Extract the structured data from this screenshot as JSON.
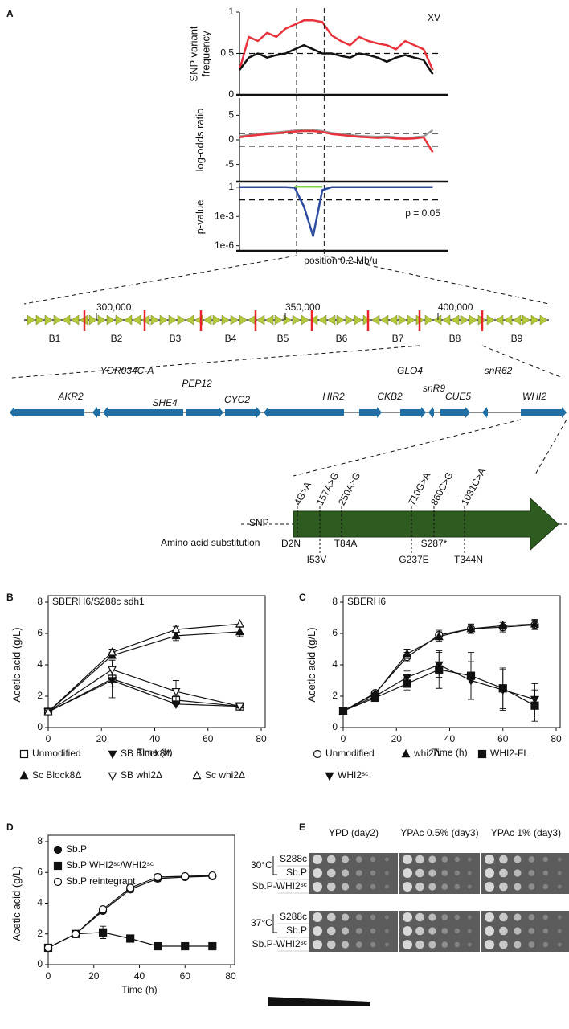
{
  "panel_labels": [
    "A",
    "B",
    "C",
    "D",
    "E"
  ],
  "chart_data": [
    {
      "type": "line",
      "annotation": "XV",
      "ylabel": "SNP variant frequency",
      "x": [
        0,
        0.05,
        0.1,
        0.15,
        0.2,
        0.25,
        0.3,
        0.35,
        0.4,
        0.45,
        0.5,
        0.55,
        0.6,
        0.65,
        0.7,
        0.75,
        0.8,
        0.85,
        0.9,
        0.95,
        1.0,
        1.05
      ],
      "series": [
        {
          "color": "#e8323c",
          "values": [
            0.3,
            0.7,
            0.65,
            0.75,
            0.7,
            0.8,
            0.85,
            0.9,
            0.9,
            0.88,
            0.72,
            0.65,
            0.6,
            0.7,
            0.65,
            0.62,
            0.6,
            0.55,
            0.65,
            0.6,
            0.55,
            0.3
          ]
        },
        {
          "color": "#111111",
          "values": [
            0.3,
            0.45,
            0.5,
            0.45,
            0.48,
            0.5,
            0.55,
            0.6,
            0.55,
            0.5,
            0.5,
            0.47,
            0.45,
            0.5,
            0.48,
            0.45,
            0.4,
            0.45,
            0.48,
            0.45,
            0.42,
            0.25
          ]
        }
      ],
      "xlim": [
        0,
        1.1
      ],
      "ylim": [
        0,
        1
      ],
      "yticks": [
        0,
        0.5,
        1
      ],
      "hlines": [
        0.5
      ],
      "region": [
        0.31,
        0.46
      ]
    },
    {
      "type": "line",
      "ylabel": "log-odds ratio",
      "x": [
        0,
        0.05,
        0.1,
        0.15,
        0.2,
        0.25,
        0.3,
        0.35,
        0.4,
        0.45,
        0.5,
        0.55,
        0.6,
        0.65,
        0.7,
        0.75,
        0.8,
        0.85,
        0.9,
        0.95,
        1.0,
        1.05
      ],
      "series": [
        {
          "color": "#999999",
          "values": [
            0.7,
            1.0,
            1.2,
            1.4,
            1.5,
            1.7,
            1.9,
            2.0,
            2.0,
            1.8,
            1.4,
            1.2,
            1.0,
            0.8,
            0.7,
            0.6,
            0.7,
            0.5,
            0.4,
            0.5,
            0.7,
            2.0
          ]
        },
        {
          "color": "#e8323c",
          "values": [
            0.5,
            0.8,
            1.0,
            1.2,
            1.3,
            1.5,
            1.7,
            1.8,
            1.8,
            1.6,
            1.2,
            1.0,
            0.8,
            0.6,
            0.5,
            0.4,
            0.5,
            0.3,
            0.2,
            0.3,
            0.5,
            -2.5
          ]
        }
      ],
      "xlim": [
        0,
        1.1
      ],
      "ylim": [
        -8.5,
        8.5
      ],
      "yticks": [
        5,
        0,
        -5
      ],
      "hlines": [
        1.3,
        -1.3
      ]
    },
    {
      "type": "line",
      "ylabel": "p-value",
      "xlabel": "position 0.2 Mb/u",
      "log": true,
      "annotation": "p = 0.05",
      "x": [
        0,
        0.05,
        0.1,
        0.15,
        0.2,
        0.25,
        0.3,
        0.35,
        0.4,
        0.45,
        0.5,
        0.55,
        0.6,
        0.65,
        0.7,
        0.75,
        0.8,
        0.85,
        0.9,
        0.95,
        1.0,
        1.05
      ],
      "series": [
        {
          "color": "#2d4ba0",
          "values": [
            1,
            1,
            1,
            1,
            1,
            1,
            0.9,
            0.01,
            1e-05,
            0.5,
            1,
            1,
            1,
            1,
            1,
            1,
            1,
            1,
            1,
            1,
            1,
            1
          ]
        },
        {
          "color": "#7fd04b",
          "values": [
            null,
            null,
            null,
            null,
            null,
            null,
            1.1,
            1.1,
            1.1,
            1.1,
            null,
            null,
            null,
            null,
            null,
            null,
            null,
            null,
            null,
            null,
            null,
            null
          ]
        }
      ],
      "xlim": [
        0,
        1.1
      ],
      "ylim": [
        3e-07,
        2.5
      ],
      "yticks": [
        1,
        {
          "value": 0.001,
          "label": "1e-3"
        },
        {
          "value": 1e-06,
          "label": "1e-6"
        }
      ],
      "hlines": [
        0.05
      ]
    },
    {
      "type": "line",
      "title": "SBERH6/S288c sdh1",
      "xlabel": "Time (h)",
      "ylabel": "Acetic acid (g/L)",
      "legend": "below",
      "x": [
        0,
        24,
        48,
        72
      ],
      "xlim": [
        0,
        80
      ],
      "xticks": [
        0,
        20,
        40,
        60,
        80
      ],
      "ylim": [
        0,
        8
      ],
      "yticks": [
        0,
        2,
        4,
        6,
        8
      ],
      "series": [
        {
          "name": "Unmodified",
          "color": "#111111",
          "marker": "square-open",
          "values": [
            1.0,
            3.1,
            1.75,
            1.35
          ],
          "errors": [
            0.1,
            1.2,
            0.3,
            0.1
          ]
        },
        {
          "name": "SB Block8Δ",
          "color": "#111111",
          "marker": "triangle-down-filled",
          "values": [
            1.0,
            3.0,
            1.5,
            1.35
          ],
          "errors": [
            0.1,
            0.4,
            0.2,
            0.1
          ]
        },
        {
          "name": "Sc Block8Δ",
          "color": "#111111",
          "marker": "triangle-up-filled",
          "values": [
            1.0,
            4.6,
            5.85,
            6.1
          ],
          "errors": [
            0.1,
            0.2,
            0.3,
            0.3
          ]
        },
        {
          "name": "SB whi2Δ",
          "color": "#111111",
          "marker": "triangle-down-open",
          "values": [
            1.0,
            3.7,
            2.3,
            1.35
          ],
          "errors": [
            0.1,
            0.6,
            0.7,
            0.1
          ]
        },
        {
          "name": "Sc whi2Δ",
          "color": "#111111",
          "marker": "triangle-up-open",
          "values": [
            1.0,
            4.8,
            6.25,
            6.6
          ],
          "errors": [
            0.1,
            0.2,
            0.2,
            0.2
          ]
        }
      ]
    },
    {
      "type": "line",
      "title": "SBERH6",
      "xlabel": "Time (h)",
      "ylabel": "Acetic acid (g/L)",
      "legend": "below",
      "x": [
        0,
        12,
        24,
        36,
        48,
        60,
        72
      ],
      "xlim": [
        0,
        80
      ],
      "xticks": [
        0,
        20,
        40,
        60,
        80
      ],
      "ylim": [
        0,
        8
      ],
      "yticks": [
        0,
        2,
        4,
        6,
        8
      ],
      "series": [
        {
          "name": "Unmodified",
          "color": "#111111",
          "marker": "circle-open",
          "values": [
            1.05,
            2.2,
            4.5,
            5.9,
            6.3,
            6.4,
            6.55
          ],
          "errors": [
            0.1,
            0.1,
            0.3,
            0.3,
            0.3,
            0.3,
            0.3
          ]
        },
        {
          "name": "whi2Δ",
          "color": "#111111",
          "marker": "triangle-up-filled",
          "values": [
            1.05,
            2.15,
            4.7,
            5.8,
            6.3,
            6.5,
            6.6
          ],
          "errors": [
            0.1,
            0.1,
            0.3,
            0.3,
            0.3,
            0.3,
            0.3
          ]
        },
        {
          "name": "WHI2-FL",
          "color": "#111111",
          "marker": "square-filled",
          "values": [
            1.05,
            1.9,
            2.8,
            3.7,
            3.3,
            2.5,
            1.4
          ],
          "errors": [
            0.1,
            0.15,
            0.4,
            1.2,
            1.5,
            1.3,
            1.0
          ]
        },
        {
          "name": "WHI2ˢᶜ",
          "color": "#111111",
          "marker": "triangle-down-filled",
          "values": [
            1.05,
            2.0,
            3.2,
            4.0,
            3.0,
            2.4,
            1.8
          ],
          "errors": [
            0.1,
            0.15,
            0.4,
            0.8,
            1.2,
            1.3,
            1.0
          ]
        }
      ]
    },
    {
      "type": "line",
      "xlabel": "Time (h)",
      "ylabel": "Acetic acid (g/L)",
      "legend": "upper left",
      "x": [
        0,
        12,
        24,
        36,
        48,
        60,
        72
      ],
      "xlim": [
        0,
        80
      ],
      "xticks": [
        0,
        20,
        40,
        60,
        80
      ],
      "ylim": [
        0,
        8
      ],
      "yticks": [
        0,
        2,
        4,
        6,
        8
      ],
      "series": [
        {
          "name": "Sb.P",
          "color": "#111111",
          "marker": "circle-filled",
          "values": [
            1.1,
            2.0,
            3.5,
            4.9,
            5.6,
            5.7,
            5.75
          ],
          "errors": [
            0.05,
            0.05,
            0.1,
            0.2,
            0.2,
            0.1,
            0.05
          ]
        },
        {
          "name": "Sb.P WHI2ˢᶜ/WHI2ˢᶜ",
          "color": "#111111",
          "marker": "square-filled",
          "values": [
            1.1,
            2.0,
            2.1,
            1.7,
            1.2,
            1.2,
            1.2
          ],
          "errors": [
            0.05,
            0.1,
            0.4,
            0.2,
            0.05,
            0.05,
            0.05
          ]
        },
        {
          "name": "Sb.P reintegrant",
          "color": "#111111",
          "marker": "circle-open",
          "values": [
            1.1,
            2.0,
            3.6,
            5.0,
            5.7,
            5.75,
            5.8
          ],
          "errors": [
            0.05,
            0.05,
            0.1,
            0.2,
            0.2,
            0.1,
            0.05
          ]
        }
      ]
    }
  ],
  "genome_map": {
    "position_labels": [
      "300,000",
      "350,000",
      "400,000"
    ],
    "blocks": [
      "B1",
      "B2",
      "B3",
      "B4",
      "B5",
      "B6",
      "B7",
      "B8",
      "B9"
    ]
  },
  "gene_map": {
    "genes": [
      "AKR2",
      "YOR034C-A",
      "SHE4",
      "PEP12",
      "CYC2",
      "HIR2",
      "CKB2",
      "GLO4",
      "snR9",
      "CUE5",
      "snR62",
      "WHI2"
    ]
  },
  "snp_diagram": {
    "snp_title": "SNP",
    "substitution_title": "Amino acid substitution",
    "snps": [
      {
        "label": "4G>A",
        "color": "#111111"
      },
      {
        "label": "157A>G",
        "color": "#111111"
      },
      {
        "label": "250A>G",
        "color": "#111111"
      },
      {
        "label": "710G>A",
        "color": "#111111"
      },
      {
        "label": "860C>G",
        "color": "#e8232a"
      },
      {
        "label": "1031C>A",
        "color": "#111111"
      }
    ],
    "substitutions": [
      "D2N",
      "I53V",
      "T84A",
      "G237E",
      "S287*",
      "T344N"
    ]
  },
  "spot_assay": {
    "media": [
      "YPD (day2)",
      "YPAc 0.5% (day3)",
      "YPAc 1% (day3)"
    ],
    "temperatures": [
      "30°C",
      "37°C"
    ],
    "strains": [
      "S288c",
      "Sb.P",
      "Sb.P-WHI2ˢᶜ"
    ]
  }
}
